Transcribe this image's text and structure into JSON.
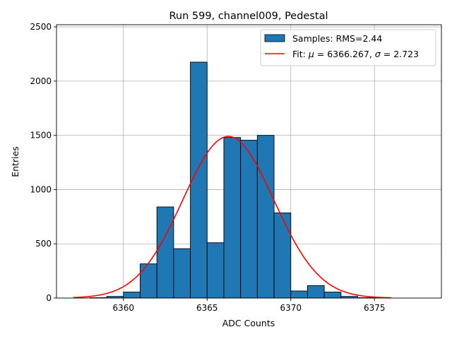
{
  "chart_data": {
    "type": "bar",
    "title": "Run 599, channel009, Pedestal",
    "xlabel": "ADC Counts",
    "ylabel": "Entries",
    "xlim": [
      6356.0,
      6379.0
    ],
    "ylim": [
      0,
      2520
    ],
    "xticks": [
      6360,
      6365,
      6370,
      6375
    ],
    "yticks": [
      0,
      500,
      1000,
      1500,
      2000,
      2500
    ],
    "grid": true,
    "legend_position": "top-right",
    "histogram": {
      "name": "Samples: RMS=2.44",
      "bin_width": 1,
      "bins": [
        {
          "left": 6358,
          "value": 3
        },
        {
          "left": 6359,
          "value": 15
        },
        {
          "left": 6360,
          "value": 55
        },
        {
          "left": 6361,
          "value": 315
        },
        {
          "left": 6362,
          "value": 840
        },
        {
          "left": 6363,
          "value": 455
        },
        {
          "left": 6364,
          "value": 2175
        },
        {
          "left": 6365,
          "value": 510
        },
        {
          "left": 6366,
          "value": 1480
        },
        {
          "left": 6367,
          "value": 1455
        },
        {
          "left": 6368,
          "value": 1500
        },
        {
          "left": 6369,
          "value": 785
        },
        {
          "left": 6370,
          "value": 65
        },
        {
          "left": 6371,
          "value": 115
        },
        {
          "left": 6372,
          "value": 55
        },
        {
          "left": 6373,
          "value": 15
        },
        {
          "left": 6374,
          "value": 3
        }
      ],
      "color": "#1f77b4",
      "edge_color": "#000000"
    },
    "fit": {
      "name": "Fit: μ = 6366.267, σ = 2.723",
      "label_prefix": "Fit: ",
      "mu_symbol": "μ",
      "sigma_symbol": "σ",
      "mu": 6366.267,
      "sigma": 2.723,
      "amplitude": 1490,
      "x_range": [
        6357,
        6376
      ],
      "color": "#ff0000"
    }
  }
}
